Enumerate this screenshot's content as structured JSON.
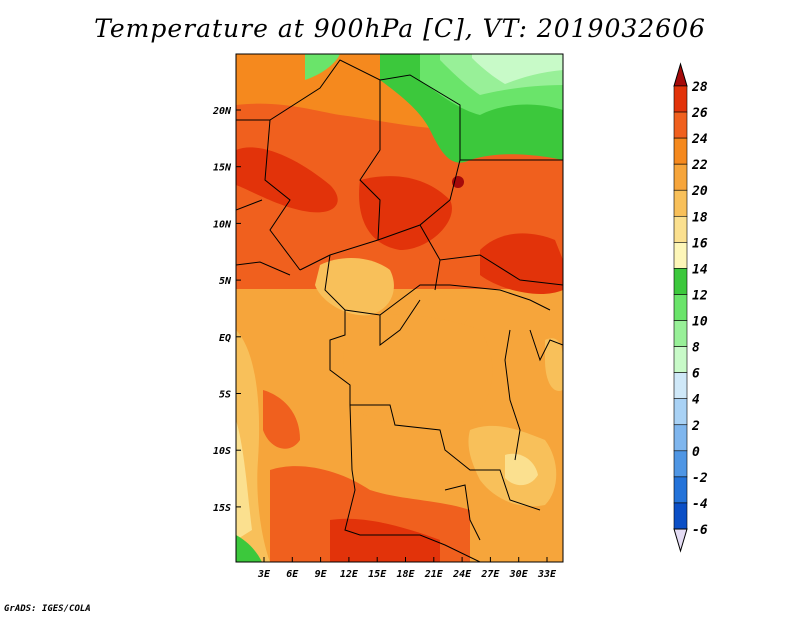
{
  "title": "Temperature at 900hPa [C], VT: 2019032606",
  "credit": "GrADS: IGES/COLA",
  "map": {
    "region": "Central Africa",
    "lon_ticks": [
      "3E",
      "6E",
      "9E",
      "12E",
      "15E",
      "18E",
      "21E",
      "24E",
      "27E",
      "30E",
      "33E"
    ],
    "lat_ticks": [
      "20N",
      "15N",
      "10N",
      "5N",
      "EQ",
      "5S",
      "10S",
      "15S"
    ]
  },
  "colorbar": {
    "labels": [
      "28",
      "26",
      "24",
      "22",
      "20",
      "18",
      "16",
      "14",
      "12",
      "10",
      "8",
      "6",
      "4",
      "2",
      "0",
      "-2",
      "-4",
      "-6"
    ],
    "colors": [
      "#a50a0a",
      "#e2330a",
      "#f0601e",
      "#f5891e",
      "#f6a53b",
      "#f8c05a",
      "#fbe08f",
      "#fdf6b8",
      "#3cc83c",
      "#6ae46a",
      "#98f098",
      "#c8fac8",
      "#cfe8f8",
      "#a9d2f5",
      "#7fb6ee",
      "#4f96e4",
      "#2473d9",
      "#0b4fc6",
      "#0a2f9a",
      "#001a6e"
    ],
    "min_arrow_color": "#e4dcf4"
  }
}
